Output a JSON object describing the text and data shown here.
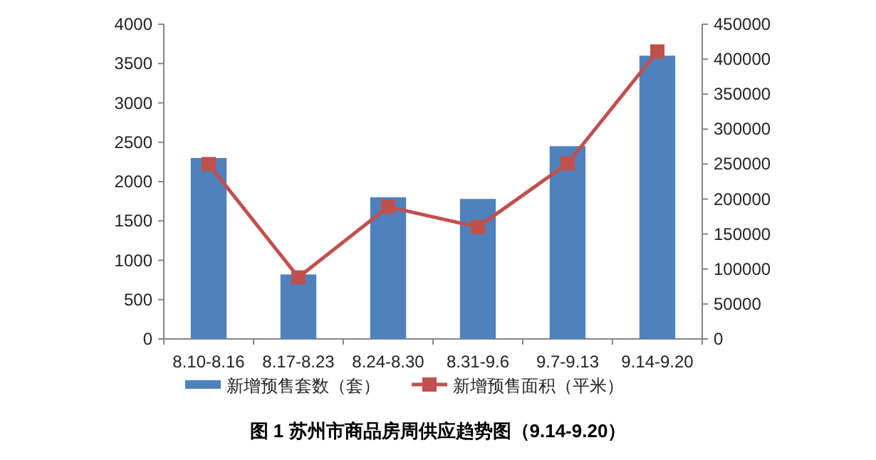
{
  "chart_data": {
    "type": "bar",
    "title": "图 1 苏州市商品房周供应趋势图（9.14-9.20）",
    "categories": [
      "8.10-8.16",
      "8.17-8.23",
      "8.24-8.30",
      "8.31-9.6",
      "9.7-9.13",
      "9.14-9.20"
    ],
    "series": [
      {
        "name": "新增预售套数（套）",
        "color": "#4f81bd",
        "values": [
          2300,
          820,
          1800,
          1780,
          2450,
          3600
        ]
      },
      {
        "name": "新增预售面积（平米）",
        "type": "line",
        "axis": "y2",
        "color": "#c0504d",
        "marker": "square",
        "values": [
          250000,
          88000,
          189000,
          160000,
          251000,
          411000
        ]
      }
    ],
    "ylim": [
      0,
      4000
    ],
    "yticks": [
      0,
      500,
      1000,
      1500,
      2000,
      2500,
      3000,
      3500,
      4000
    ],
    "y2lim": [
      0,
      450000
    ],
    "y2ticks": [
      0,
      50000,
      100000,
      150000,
      200000,
      250000,
      300000,
      350000,
      400000,
      450000
    ],
    "grid": false,
    "legend": "bottom"
  }
}
